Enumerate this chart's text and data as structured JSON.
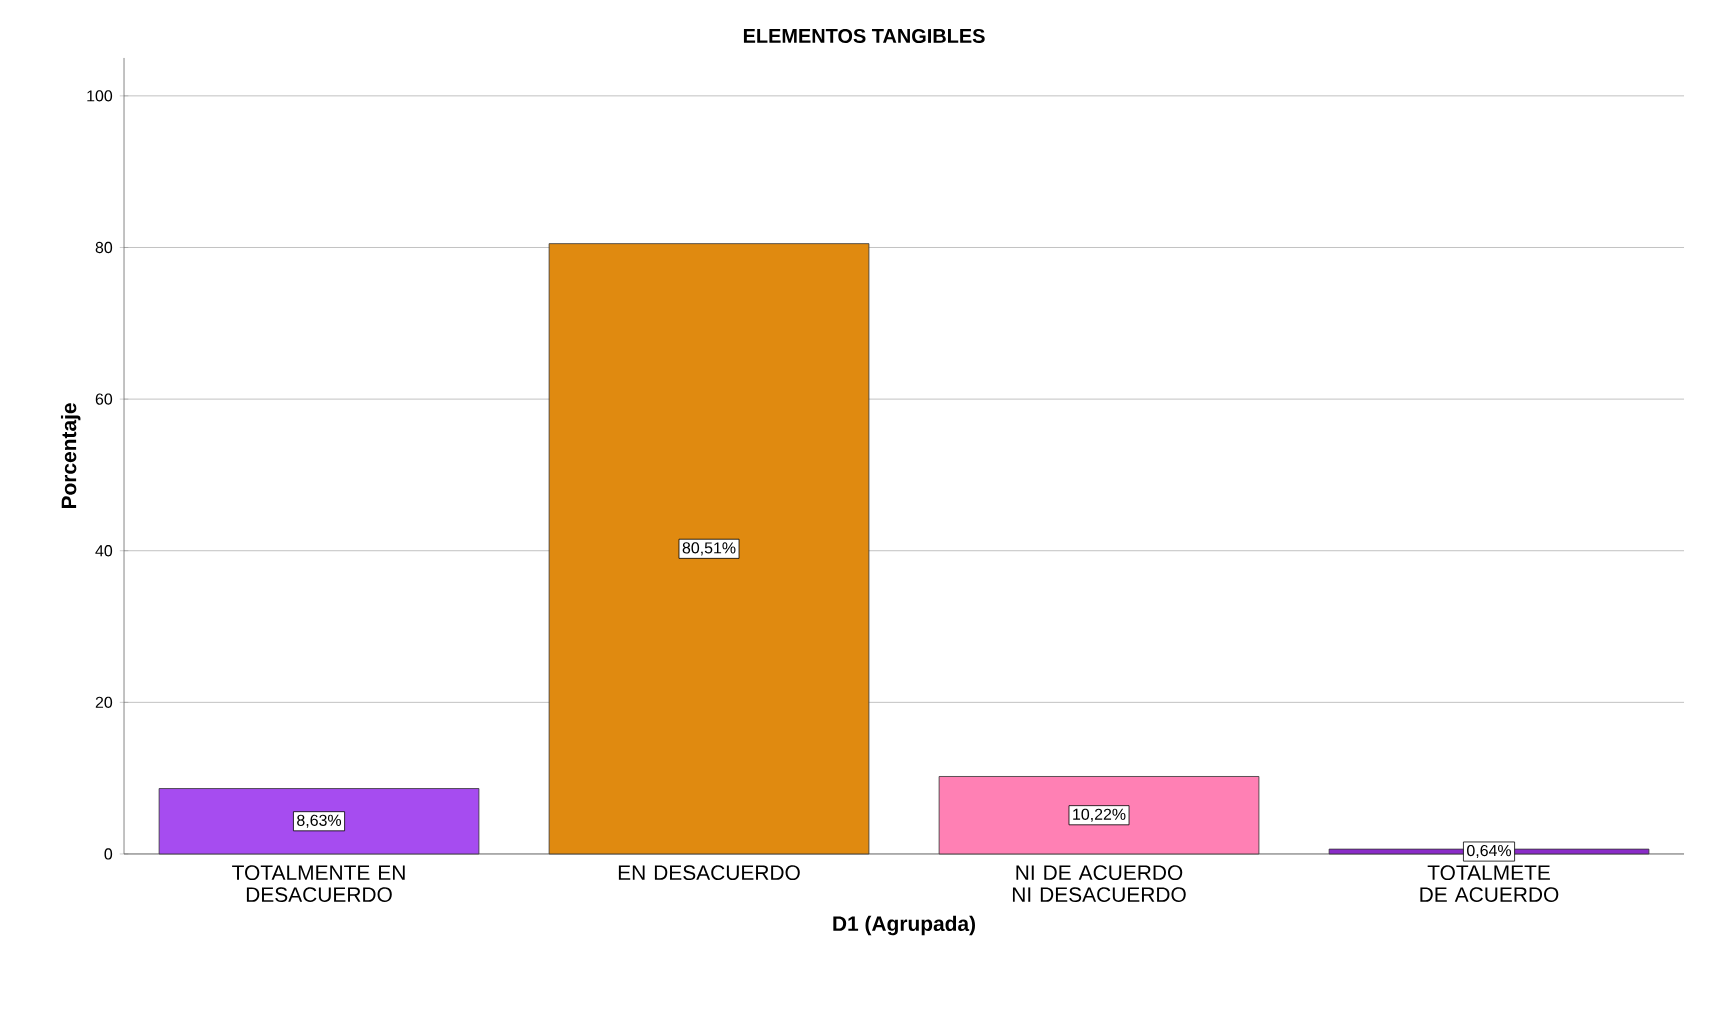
{
  "chart_data": {
    "type": "bar",
    "title": "ELEMENTOS TANGIBLES",
    "xlabel": "D1 (Agrupada)",
    "ylabel": "Porcentaje",
    "categories": [
      "TOTALMENTE EN DESACUERDO",
      "EN DESACUERDO",
      "NI DE ACUERDO NI DESACUERDO",
      "TOTALMETE DE ACUERDO"
    ],
    "values": [
      8.63,
      80.51,
      10.22,
      0.64
    ],
    "colors": [
      "#a64cf0",
      "#e08a10",
      "#ff80b4",
      "#8a2cc8"
    ],
    "value_labels": [
      "8,63%",
      "80,51%",
      "10,22%",
      "0,64%"
    ],
    "ylim": [
      0,
      105
    ],
    "yticks": [
      0,
      20,
      40,
      60,
      80,
      100
    ],
    "grid": "y"
  }
}
